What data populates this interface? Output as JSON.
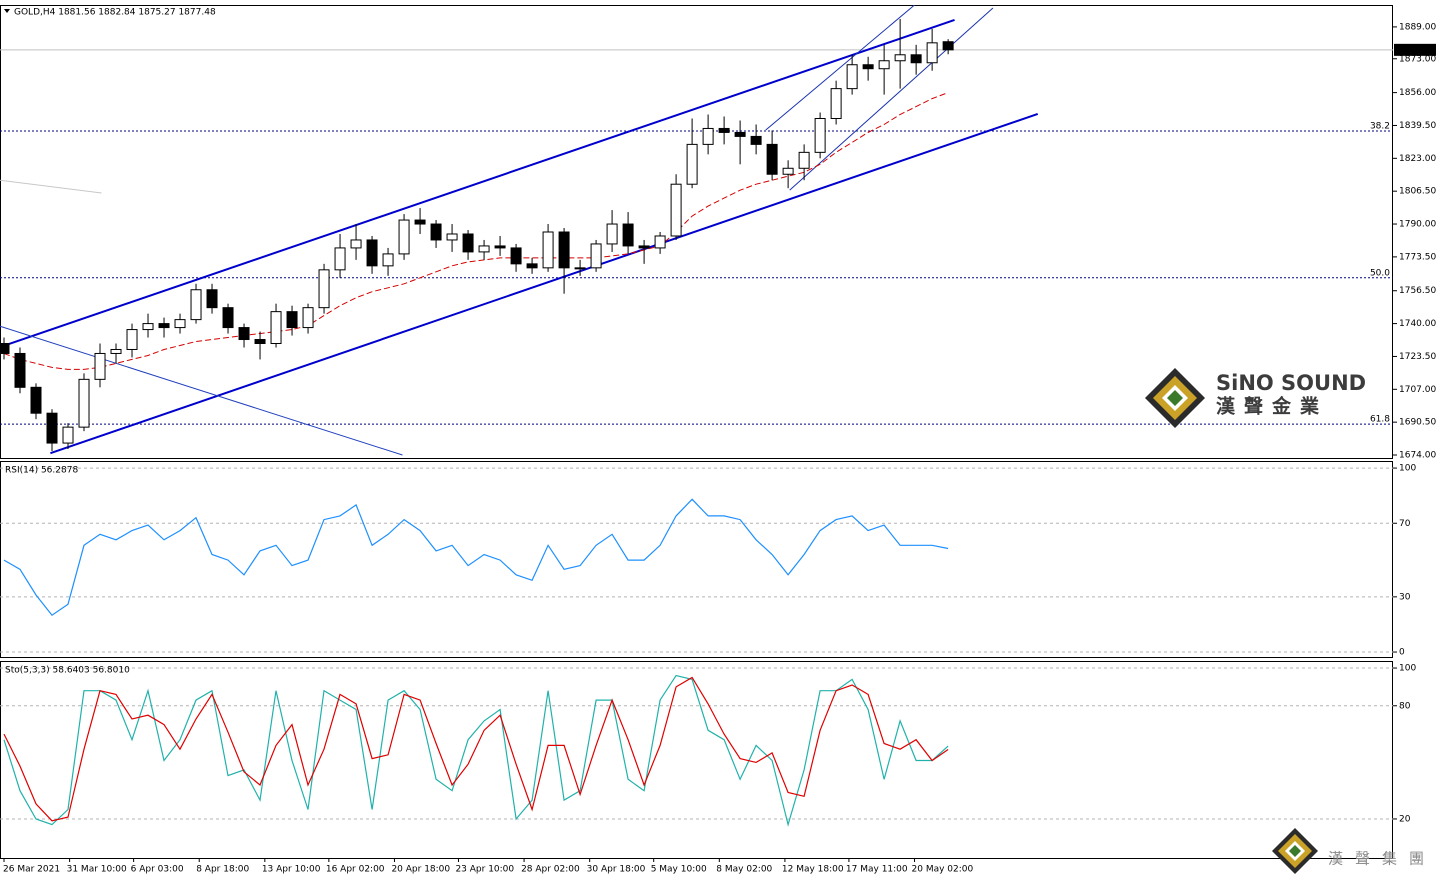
{
  "chart_data": [
    {
      "type": "candlestick",
      "title": "GOLD,H4  1881.56 1882.84 1875.27 1877.48",
      "x": [
        0,
        1,
        2,
        3,
        4,
        5,
        6,
        7,
        8,
        9,
        10,
        11,
        12,
        13,
        14,
        15,
        16,
        17,
        18,
        19,
        20,
        21,
        22,
        23,
        24,
        25,
        26,
        27,
        28,
        29,
        30,
        31,
        32,
        33,
        34,
        35,
        36,
        37,
        38,
        39,
        40,
        41,
        42,
        43,
        44,
        45,
        46,
        47,
        48,
        49,
        50,
        51,
        52,
        53,
        54,
        55,
        56,
        57,
        58,
        59
      ],
      "open": [
        1730,
        1725,
        1708,
        1695,
        1680,
        1688,
        1712,
        1725,
        1727,
        1737,
        1740,
        1738,
        1742,
        1757,
        1748,
        1738,
        1732,
        1730,
        1746,
        1738,
        1748,
        1767,
        1778,
        1782,
        1769,
        1775,
        1792,
        1790,
        1782,
        1785,
        1776,
        1779,
        1778,
        1770,
        1768,
        1786,
        1768,
        1768,
        1780,
        1790,
        1779,
        1778,
        1784,
        1810,
        1830,
        1838,
        1836,
        1834,
        1830,
        1815,
        1818,
        1826,
        1843,
        1858,
        1870,
        1868,
        1872,
        1875,
        1871,
        1881.56
      ],
      "high": [
        1733,
        1728,
        1710,
        1697,
        1690,
        1715,
        1730,
        1730,
        1740,
        1745,
        1743,
        1745,
        1760,
        1760,
        1750,
        1740,
        1736,
        1750,
        1749,
        1750,
        1770,
        1785,
        1790,
        1784,
        1778,
        1795,
        1798,
        1792,
        1790,
        1787,
        1782,
        1784,
        1780,
        1773,
        1790,
        1788,
        1772,
        1782,
        1797,
        1796,
        1782,
        1786,
        1815,
        1843,
        1845,
        1844,
        1842,
        1840,
        1837,
        1822,
        1830,
        1846,
        1862,
        1875,
        1874,
        1880,
        1893,
        1880,
        1888,
        1882.84
      ],
      "low": [
        1722,
        1705,
        1692,
        1676,
        1677,
        1686,
        1708,
        1720,
        1723,
        1733,
        1733,
        1735,
        1740,
        1745,
        1735,
        1728,
        1722,
        1728,
        1734,
        1735,
        1745,
        1763,
        1772,
        1765,
        1764,
        1772,
        1785,
        1778,
        1776,
        1772,
        1772,
        1774,
        1766,
        1765,
        1766,
        1755,
        1764,
        1766,
        1776,
        1775,
        1770,
        1775,
        1782,
        1808,
        1825,
        1830,
        1820,
        1825,
        1812,
        1808,
        1812,
        1823,
        1840,
        1855,
        1862,
        1855,
        1858,
        1865,
        1867,
        1875.27
      ],
      "close": [
        1725,
        1708,
        1695,
        1680,
        1688,
        1712,
        1725,
        1727,
        1737,
        1740,
        1738,
        1742,
        1757,
        1748,
        1738,
        1732,
        1730,
        1746,
        1738,
        1748,
        1767,
        1778,
        1782,
        1769,
        1775,
        1792,
        1790,
        1782,
        1785,
        1776,
        1779,
        1778,
        1770,
        1768,
        1786,
        1768,
        1768,
        1780,
        1790,
        1779,
        1778,
        1784,
        1810,
        1830,
        1838,
        1836,
        1834,
        1830,
        1815,
        1818,
        1826,
        1843,
        1858,
        1870,
        1868,
        1872,
        1875,
        1871,
        1881,
        1877.48
      ],
      "up_color": "#ffffff",
      "down_color": "#000000",
      "xlim": [
        -0.25,
        86.8
      ],
      "xticks": [
        {
          "value": 0,
          "label": "26 Mar 2021"
        },
        {
          "value": 4.1,
          "label": "31 Mar 10:00"
        },
        {
          "value": 8.1,
          "label": "6 Apr 03:00"
        },
        {
          "value": 12.2,
          "label": "8 Apr 18:00"
        },
        {
          "value": 16.3,
          "label": "13 Apr 10:00"
        },
        {
          "value": 20.3,
          "label": "16 Apr 02:00"
        },
        {
          "value": 24.4,
          "label": "20 Apr 18:00"
        },
        {
          "value": 28.4,
          "label": "23 Apr 10:00"
        },
        {
          "value": 32.5,
          "label": "28 Apr 02:00"
        },
        {
          "value": 36.6,
          "label": "30 Apr 18:00"
        },
        {
          "value": 40.6,
          "label": "5 May 10:00"
        },
        {
          "value": 44.7,
          "label": "8 May 02:00"
        },
        {
          "value": 48.8,
          "label": "12 May 18:00"
        },
        {
          "value": 52.8,
          "label": "17 May 11:00"
        },
        {
          "value": 56.9,
          "label": "20 May 02:00"
        }
      ],
      "ylim": [
        1672.5,
        1900
      ],
      "yticks": [
        {
          "value": 1889,
          "label": "1889.00"
        },
        {
          "value": 1873,
          "label": "1873.00"
        },
        {
          "value": 1856,
          "label": "1856.00"
        },
        {
          "value": 1839.5,
          "label": "1839.50"
        },
        {
          "value": 1823,
          "label": "1823.00"
        },
        {
          "value": 1806.5,
          "label": "1806.50"
        },
        {
          "value": 1790,
          "label": "1790.00"
        },
        {
          "value": 1773.5,
          "label": "1773.50"
        },
        {
          "value": 1756.5,
          "label": "1756.50"
        },
        {
          "value": 1740,
          "label": "1740.00"
        },
        {
          "value": 1723.5,
          "label": "1723.50"
        },
        {
          "value": 1707,
          "label": "1707.00"
        },
        {
          "value": 1690.5,
          "label": "1690.50"
        },
        {
          "value": 1674,
          "label": "1674.00"
        }
      ],
      "grid": false,
      "current_price": 1877.48,
      "fib_levels": [
        {
          "label": "38.2",
          "price": 1836.7
        },
        {
          "label": "50.0",
          "price": 1763
        },
        {
          "label": "61.8",
          "price": 1689.5
        }
      ],
      "fib_color": "#000080",
      "trend_lines": [
        {
          "points": [
            [
              -0.25,
              1728.2
            ],
            [
              59.4,
              1892.5
            ]
          ],
          "color": "#0000cd",
          "width": 2
        },
        {
          "points": [
            [
              2.9,
              1674.9
            ],
            [
              64.6,
              1845.3
            ]
          ],
          "color": "#0000cd",
          "width": 2
        },
        {
          "points": [
            [
              -0.25,
              1738.7
            ],
            [
              24.9,
              1674
            ]
          ],
          "color": "#1f3fbf",
          "width": 1
        },
        {
          "points": [
            [
              47.6,
              1837.2
            ],
            [
              56.9,
              1900
            ]
          ],
          "color": "#1a33b0",
          "width": 1
        },
        {
          "points": [
            [
              49.1,
              1807
            ],
            [
              61.8,
              1898.5
            ]
          ],
          "color": "#1a33b0",
          "width": 1
        },
        {
          "points": [
            [
              -0.25,
              1812
            ],
            [
              6.1,
              1805.6
            ]
          ],
          "color": "#c8c8c8",
          "width": 1
        }
      ],
      "moving_average": {
        "color": "#d40000",
        "values": [
          1725,
          1722,
          1720,
          1718,
          1717,
          1717,
          1718,
          1720,
          1722,
          1724,
          1727,
          1729,
          1731,
          1732,
          1733,
          1734,
          1735,
          1736,
          1737,
          1739,
          1744,
          1749,
          1753,
          1756,
          1758,
          1760,
          1763,
          1766,
          1769,
          1771,
          1772,
          1773,
          1773,
          1773,
          1773,
          1773,
          1773,
          1773,
          1774,
          1775,
          1777,
          1779,
          1786,
          1794,
          1799,
          1803,
          1807,
          1810,
          1812,
          1814,
          1816,
          1820,
          1826,
          1831,
          1836,
          1840,
          1845,
          1849,
          1853,
          1856
        ]
      },
      "watermark": {
        "brand": "SiNO SOUND",
        "chinese": "漢聲金業"
      },
      "footer_logo": "漢聲集團"
    },
    {
      "type": "line",
      "title": "RSI(14) 56.2878",
      "series": [
        {
          "color": "#1e90ff",
          "values": [
            50,
            45,
            31,
            20,
            26,
            58,
            64,
            61,
            66,
            69,
            61,
            66,
            73,
            53,
            50,
            42,
            55,
            58,
            47,
            50,
            72,
            74,
            80,
            58,
            64,
            72,
            66,
            55,
            58,
            47,
            53,
            50,
            42,
            39,
            58,
            45,
            47,
            58,
            64,
            50,
            50,
            58,
            74,
            83,
            74,
            74,
            72,
            61,
            53,
            42,
            53,
            66,
            72,
            74,
            66,
            69,
            58,
            58,
            58,
            56.2878
          ]
        }
      ],
      "ylim": [
        -2.7,
        103.3
      ],
      "yticks": [
        100,
        70,
        30,
        0
      ],
      "grid": true
    },
    {
      "type": "line",
      "title": "Sto(5,3,3) 58.6403 56.8010",
      "series": [
        {
          "color": "#20b2aa",
          "values": [
            62,
            35,
            20,
            17,
            25,
            88,
            88,
            83,
            62,
            88,
            51,
            62,
            83,
            88,
            43,
            46,
            30,
            88,
            51,
            25,
            88,
            83,
            78,
            25,
            83,
            88,
            78,
            41,
            35,
            62,
            72,
            78,
            20,
            30,
            88,
            30,
            35,
            83,
            83,
            41,
            35,
            83,
            96,
            94,
            67,
            62,
            41,
            59,
            51,
            17,
            46,
            88,
            88,
            94,
            78,
            41,
            72,
            51,
            51,
            58.6403
          ]
        },
        {
          "color": "#e00000",
          "values": [
            65,
            48,
            28,
            19,
            21,
            57,
            88,
            86,
            73,
            75,
            70,
            57,
            73,
            86,
            66,
            45,
            38,
            59,
            70,
            38,
            57,
            86,
            81,
            52,
            54,
            86,
            83,
            60,
            38,
            49,
            67,
            75,
            49,
            25,
            59,
            59,
            33,
            59,
            83,
            62,
            38,
            59,
            90,
            95,
            81,
            65,
            52,
            50,
            55,
            34,
            32,
            67,
            88,
            91,
            86,
            60,
            57,
            62,
            51,
            56.801
          ]
        }
      ],
      "ylim": [
        -0.7,
        103.2
      ],
      "yticks": [
        100,
        80,
        20
      ],
      "grid": true
    }
  ]
}
